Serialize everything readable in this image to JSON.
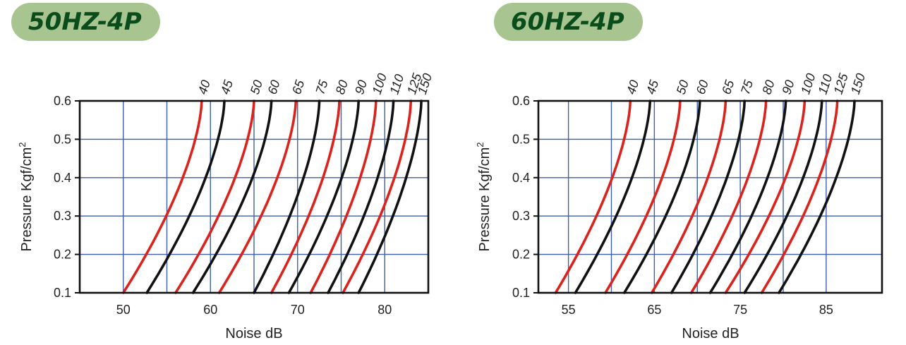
{
  "colors": {
    "grid": "#3f5fa8",
    "red": "#d9231c",
    "black": "#111111",
    "badge_bg": "#a8c490",
    "badge_text": "#0a4d1c"
  },
  "chart_data": [
    {
      "type": "line",
      "title": "50HZ-4P",
      "xlabel": "Noise  dB",
      "ylabel": "Pressure  Kgf/cm",
      "ylabel_sup": "2",
      "xlim": [
        45,
        85
      ],
      "ylim": [
        0.1,
        0.6
      ],
      "xticks": [
        50,
        60,
        70,
        80
      ],
      "xtick_labels": [
        "50",
        "60",
        "70",
        "80"
      ],
      "xgrid": [
        50,
        55,
        60,
        65,
        70,
        75,
        80
      ],
      "yticks": [
        0.1,
        0.2,
        0.3,
        0.4,
        0.5,
        0.6
      ],
      "ytick_labels": [
        "0.1",
        "0.2",
        "0.3",
        "0.4",
        "0.5",
        "0.6"
      ],
      "grid": true,
      "series": [
        {
          "name": "40",
          "color": "red",
          "x0": 50.0,
          "x1": 59.0
        },
        {
          "name": "45",
          "color": "black",
          "x0": 52.7,
          "x1": 61.6
        },
        {
          "name": "50",
          "color": "red",
          "x0": 56.0,
          "x1": 65.0
        },
        {
          "name": "60",
          "color": "black",
          "x0": 58.0,
          "x1": 67.0
        },
        {
          "name": "65",
          "color": "red",
          "x0": 61.0,
          "x1": 69.8
        },
        {
          "name": "75",
          "color": "black",
          "x0": 65.0,
          "x1": 72.5
        },
        {
          "name": "80",
          "color": "red",
          "x0": 67.0,
          "x1": 74.8
        },
        {
          "name": "90",
          "color": "black",
          "x0": 69.0,
          "x1": 77.0
        },
        {
          "name": "100",
          "color": "red",
          "x0": 71.5,
          "x1": 79.0
        },
        {
          "name": "110",
          "color": "black",
          "x0": 73.5,
          "x1": 81.0
        },
        {
          "name": "125",
          "color": "red",
          "x0": 75.2,
          "x1": 83.0
        },
        {
          "name": "150",
          "color": "black",
          "x0": 77.0,
          "x1": 84.2
        }
      ]
    },
    {
      "type": "line",
      "title": "60HZ-4P",
      "xlabel": "Noise  dB",
      "ylabel": "Pressure  Kgf/cm",
      "ylabel_sup": "2",
      "xlim": [
        51.5,
        91.5
      ],
      "ylim": [
        0.1,
        0.6
      ],
      "xticks": [
        55,
        65,
        75,
        85
      ],
      "xtick_labels": [
        "55",
        "65",
        "75",
        "85"
      ],
      "xgrid": [
        55,
        60,
        65,
        70,
        75,
        80,
        85
      ],
      "yticks": [
        0.1,
        0.2,
        0.3,
        0.4,
        0.5,
        0.6
      ],
      "ytick_labels": [
        "0.1",
        "0.2",
        "0.3",
        "0.4",
        "0.5",
        "0.6"
      ],
      "grid": true,
      "series": [
        {
          "name": "40",
          "color": "red",
          "x0": 53.5,
          "x1": 62.2
        },
        {
          "name": "45",
          "color": "black",
          "x0": 55.8,
          "x1": 64.5
        },
        {
          "name": "50",
          "color": "red",
          "x0": 59.3,
          "x1": 68.0
        },
        {
          "name": "60",
          "color": "black",
          "x0": 61.5,
          "x1": 70.3
        },
        {
          "name": "65",
          "color": "red",
          "x0": 64.7,
          "x1": 73.3
        },
        {
          "name": "75",
          "color": "black",
          "x0": 67.0,
          "x1": 75.5
        },
        {
          "name": "80",
          "color": "red",
          "x0": 69.3,
          "x1": 78.0
        },
        {
          "name": "90",
          "color": "black",
          "x0": 71.5,
          "x1": 80.3
        },
        {
          "name": "100",
          "color": "red",
          "x0": 73.3,
          "x1": 82.5
        },
        {
          "name": "110",
          "color": "black",
          "x0": 75.5,
          "x1": 84.5
        },
        {
          "name": "125",
          "color": "red",
          "x0": 77.5,
          "x1": 86.3
        },
        {
          "name": "150",
          "color": "black",
          "x0": 79.5,
          "x1": 88.3
        }
      ]
    }
  ]
}
